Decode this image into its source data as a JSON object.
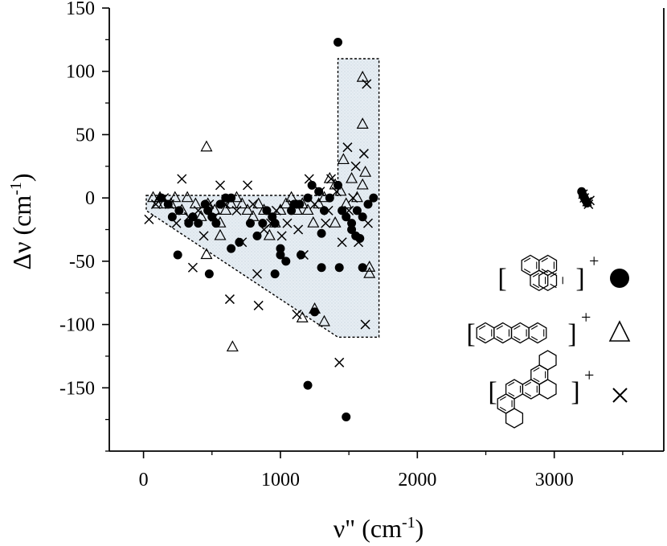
{
  "chart_data": {
    "type": "scatter",
    "xlabel": {
      "symbol": "ν\"",
      "unit_base": " (cm",
      "unit_exp": "-1",
      "unit_close": ")"
    },
    "ylabel": {
      "symbol": "Δν",
      "unit_base": " (cm",
      "unit_exp": "-1",
      "unit_close": ")"
    },
    "xlim": [
      -250,
      3800
    ],
    "ylim": [
      -200,
      150
    ],
    "x_ticks": [
      0,
      1000,
      2000,
      3000
    ],
    "x_tick_labels": [
      "0",
      "1000",
      "2000",
      "3000"
    ],
    "y_ticks": [
      150,
      100,
      50,
      0,
      -50,
      -100,
      -150
    ],
    "y_tick_labels": [
      "150",
      "100",
      "50",
      "0",
      "-50",
      "-100",
      "-150"
    ],
    "grid": false,
    "legend_placement": "bottom-right",
    "shaded_region": {
      "polygon": [
        [
          20,
          2
        ],
        [
          1420,
          2
        ],
        [
          1420,
          110
        ],
        [
          1720,
          110
        ],
        [
          1720,
          -110
        ],
        [
          1420,
          -110
        ],
        [
          20,
          -10
        ]
      ],
      "fill": "#e2eaf1",
      "stroke": "#000000"
    },
    "series": [
      {
        "marker": "filled-circle",
        "legend_suffix": "+",
        "legend_molecule": "pyrene",
        "points": [
          [
            1420,
            123
          ],
          [
            130,
            0
          ],
          [
            180,
            -5
          ],
          [
            210,
            -15
          ],
          [
            260,
            -10
          ],
          [
            330,
            -20
          ],
          [
            360,
            -15
          ],
          [
            400,
            -20
          ],
          [
            450,
            -5
          ],
          [
            470,
            -10
          ],
          [
            500,
            -15
          ],
          [
            530,
            -20
          ],
          [
            560,
            -5
          ],
          [
            600,
            0
          ],
          [
            640,
            0
          ],
          [
            700,
            -35
          ],
          [
            780,
            -20
          ],
          [
            830,
            -30
          ],
          [
            870,
            -20
          ],
          [
            900,
            -10
          ],
          [
            940,
            -15
          ],
          [
            960,
            -20
          ],
          [
            1000,
            -40
          ],
          [
            1040,
            -50
          ],
          [
            1080,
            -10
          ],
          [
            1100,
            -5
          ],
          [
            1140,
            -5
          ],
          [
            1200,
            0
          ],
          [
            1230,
            10
          ],
          [
            1280,
            5
          ],
          [
            1320,
            -10
          ],
          [
            1360,
            0
          ],
          [
            1420,
            10
          ],
          [
            1450,
            -10
          ],
          [
            1480,
            -15
          ],
          [
            1520,
            -20
          ],
          [
            1560,
            -10
          ],
          [
            1600,
            -15
          ],
          [
            1640,
            -5
          ],
          [
            1680,
            0
          ],
          [
            250,
            -45
          ],
          [
            480,
            -60
          ],
          [
            640,
            -40
          ],
          [
            960,
            -60
          ],
          [
            1000,
            -45
          ],
          [
            1150,
            -45
          ],
          [
            1300,
            -55
          ],
          [
            1430,
            -55
          ],
          [
            1600,
            -55
          ],
          [
            1580,
            -32
          ],
          [
            1550,
            -30
          ],
          [
            1520,
            -25
          ],
          [
            1300,
            -28
          ],
          [
            1250,
            -90
          ],
          [
            1200,
            -148
          ],
          [
            1480,
            -173
          ],
          [
            3200,
            5
          ],
          [
            3210,
            2
          ],
          [
            3220,
            0
          ],
          [
            3230,
            -2
          ],
          [
            3240,
            -4
          ]
        ]
      },
      {
        "marker": "open-triangle",
        "legend_suffix": "+",
        "legend_molecule": "tetracene",
        "points": [
          [
            460,
            40
          ],
          [
            70,
            0
          ],
          [
            100,
            -5
          ],
          [
            120,
            0
          ],
          [
            150,
            -5
          ],
          [
            200,
            -5
          ],
          [
            230,
            0
          ],
          [
            280,
            -10
          ],
          [
            320,
            0
          ],
          [
            380,
            -5
          ],
          [
            420,
            -15
          ],
          [
            470,
            -5
          ],
          [
            520,
            -10
          ],
          [
            560,
            -20
          ],
          [
            600,
            -10
          ],
          [
            640,
            -5
          ],
          [
            680,
            0
          ],
          [
            720,
            -5
          ],
          [
            760,
            -10
          ],
          [
            800,
            -15
          ],
          [
            840,
            -5
          ],
          [
            880,
            -10
          ],
          [
            920,
            -30
          ],
          [
            960,
            -20
          ],
          [
            1000,
            -10
          ],
          [
            1040,
            -5
          ],
          [
            1080,
            0
          ],
          [
            1120,
            -10
          ],
          [
            1160,
            -5
          ],
          [
            1200,
            -10
          ],
          [
            1240,
            -20
          ],
          [
            1280,
            -5
          ],
          [
            1320,
            0
          ],
          [
            1360,
            15
          ],
          [
            1400,
            10
          ],
          [
            1440,
            5
          ],
          [
            1480,
            -5
          ],
          [
            1520,
            15
          ],
          [
            1560,
            0
          ],
          [
            1600,
            10
          ],
          [
            1620,
            20
          ],
          [
            1600,
            95
          ],
          [
            1600,
            58
          ],
          [
            1650,
            -55
          ],
          [
            1650,
            -60
          ],
          [
            1460,
            30
          ],
          [
            1400,
            -20
          ],
          [
            460,
            -45
          ],
          [
            650,
            -118
          ],
          [
            1250,
            -88
          ],
          [
            1320,
            -98
          ],
          [
            1160,
            -95
          ],
          [
            560,
            -30
          ]
        ]
      },
      {
        "marker": "cross",
        "legend_suffix": "+",
        "legend_molecule": "benzo-fused polycyclic",
        "points": [
          [
            40,
            -17
          ],
          [
            90,
            -5
          ],
          [
            150,
            0
          ],
          [
            190,
            -5
          ],
          [
            240,
            -20
          ],
          [
            280,
            15
          ],
          [
            330,
            -15
          ],
          [
            360,
            -55
          ],
          [
            400,
            -10
          ],
          [
            440,
            -30
          ],
          [
            480,
            -5
          ],
          [
            520,
            -15
          ],
          [
            560,
            10
          ],
          [
            600,
            -5
          ],
          [
            630,
            -80
          ],
          [
            680,
            -10
          ],
          [
            720,
            -35
          ],
          [
            760,
            10
          ],
          [
            800,
            -5
          ],
          [
            830,
            -60
          ],
          [
            840,
            -85
          ],
          [
            880,
            -25
          ],
          [
            930,
            -20
          ],
          [
            970,
            -10
          ],
          [
            1010,
            -30
          ],
          [
            1050,
            -20
          ],
          [
            1090,
            -5
          ],
          [
            1130,
            -25
          ],
          [
            1170,
            -45
          ],
          [
            1210,
            15
          ],
          [
            1250,
            -5
          ],
          [
            1290,
            5
          ],
          [
            1330,
            -20
          ],
          [
            1370,
            15
          ],
          [
            1410,
            5
          ],
          [
            1450,
            -35
          ],
          [
            1490,
            40
          ],
          [
            1530,
            0
          ],
          [
            1570,
            -35
          ],
          [
            1610,
            35
          ],
          [
            1630,
            90
          ],
          [
            1620,
            -100
          ],
          [
            1640,
            -20
          ],
          [
            1550,
            25
          ],
          [
            1430,
            -130
          ],
          [
            1500,
            -10
          ],
          [
            1120,
            -92
          ],
          [
            1350,
            -10
          ],
          [
            3210,
            3
          ],
          [
            3220,
            0
          ],
          [
            3240,
            -3
          ],
          [
            3250,
            -5
          ],
          [
            3260,
            -2
          ]
        ]
      }
    ]
  }
}
